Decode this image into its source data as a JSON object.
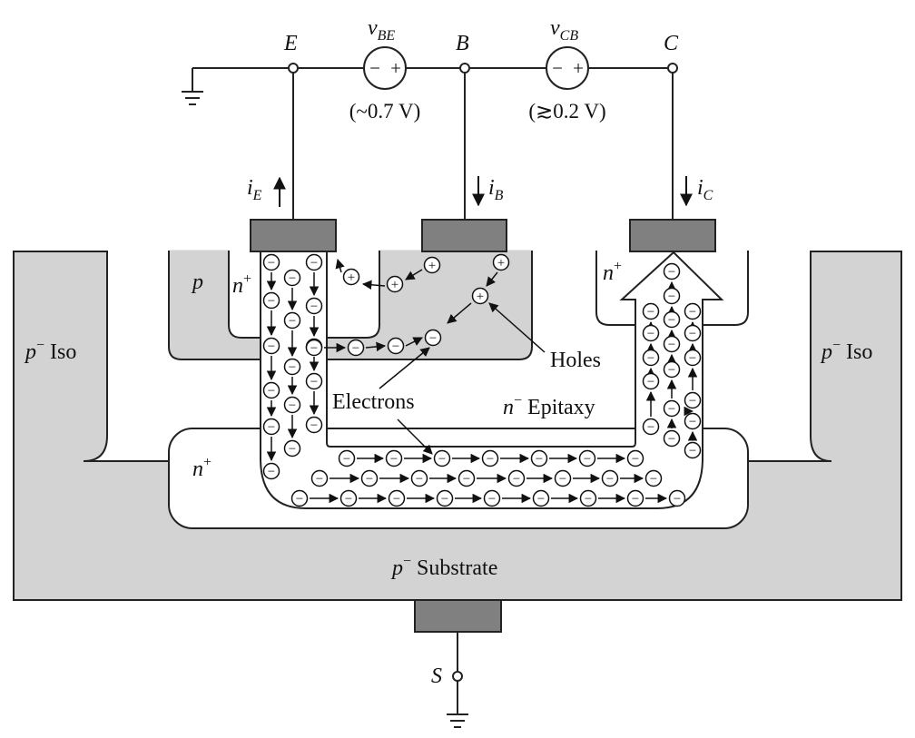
{
  "terminals": {
    "emitter": "E",
    "base": "B",
    "collector": "C",
    "substrate": "S"
  },
  "sources": {
    "vbe": {
      "symbol": "v",
      "subscript": "BE",
      "value": "(~0.7 V)"
    },
    "vcb": {
      "symbol": "v",
      "subscript": "CB",
      "value": "(≳0.2 V)"
    }
  },
  "source_signs": {
    "minus": "−",
    "plus": "+"
  },
  "currents": {
    "ie": {
      "symbol": "i",
      "subscript": "E"
    },
    "ib": {
      "symbol": "i",
      "subscript": "B"
    },
    "ic": {
      "symbol": "i",
      "subscript": "C"
    }
  },
  "regions": {
    "p_iso_left": {
      "base": "p",
      "sup": "−",
      "rest": " Iso"
    },
    "p_iso_right": {
      "base": "p",
      "sup": "−",
      "rest": " Iso"
    },
    "p_base": "p",
    "n_plus_emitter": {
      "base": "n",
      "sup": "+"
    },
    "n_plus_collector": {
      "base": "n",
      "sup": "+"
    },
    "n_plus_buried": {
      "base": "n",
      "sup": "+"
    },
    "n_epitaxy": {
      "base": "n",
      "sup": "−",
      "rest": " Epitaxy"
    },
    "p_substrate": {
      "base": "p",
      "sup": "−",
      "rest": " Substrate"
    }
  },
  "annotations": {
    "holes": "Holes",
    "electrons": "Electrons"
  },
  "carriers": {
    "electron_sign": "−",
    "hole_sign": "+"
  },
  "colors": {
    "p_region": "#d3d3d3",
    "n_region": "#ffffff",
    "contact_metal": "#808080",
    "outline": "#222222"
  }
}
